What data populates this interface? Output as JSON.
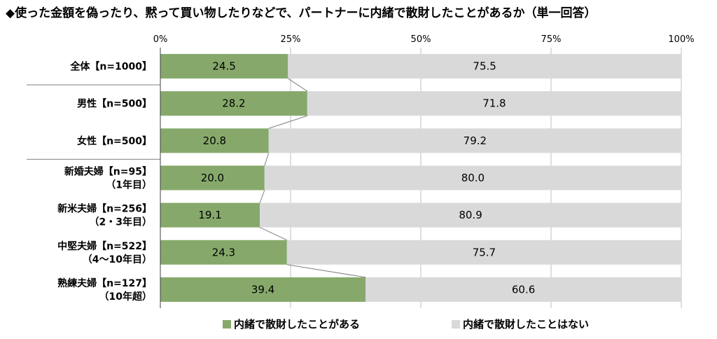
{
  "title": "◆使った金額を偽ったり、黙って買い物したりなどで、パートナーに内緒で散財したことがあるか（単一回答）",
  "chart_data": {
    "type": "bar",
    "orientation": "horizontal",
    "stacked": true,
    "percent_scale": true,
    "xlim": [
      0,
      100
    ],
    "x_ticks": [
      "0%",
      "25%",
      "50%",
      "75%",
      "100%"
    ],
    "grid": true,
    "legend_position": "bottom",
    "categories": [
      {
        "label": [
          "全体【n=1000】"
        ]
      },
      {
        "label": [
          "男性【n=500】"
        ]
      },
      {
        "label": [
          "女性【n=500】"
        ]
      },
      {
        "label": [
          "新婚夫婦【n=95】",
          "（1年目）"
        ]
      },
      {
        "label": [
          "新米夫婦【n=256】",
          "（2・3年目）"
        ]
      },
      {
        "label": [
          "中堅夫婦【n=522】",
          "（4～10年目）"
        ]
      },
      {
        "label": [
          "熟練夫婦【n=127】",
          "（10年超）"
        ]
      }
    ],
    "series": [
      {
        "name": "内緒で散財したことがある",
        "color": "#86a96b",
        "values": [
          24.5,
          28.2,
          20.8,
          20.0,
          19.1,
          24.3,
          39.4
        ],
        "labels": [
          "24.5",
          "28.2",
          "20.8",
          "20.0",
          "19.1",
          "24.3",
          "39.4"
        ]
      },
      {
        "name": "内緒で散財したことはない",
        "color": "#d9d9d9",
        "values": [
          75.5,
          71.8,
          79.2,
          80.0,
          80.9,
          75.7,
          60.6
        ],
        "labels": [
          "75.5",
          "71.8",
          "79.2",
          "80.0",
          "80.9",
          "75.7",
          "60.6"
        ]
      }
    ],
    "connector_color": "#808080"
  }
}
